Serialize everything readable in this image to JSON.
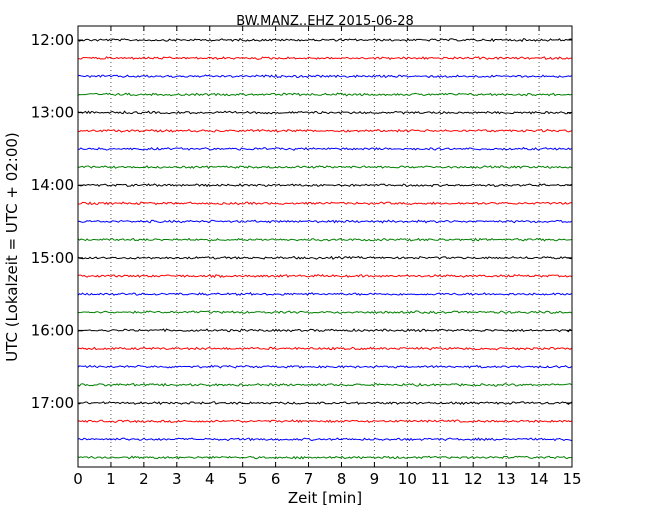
{
  "chart_data": {
    "type": "line",
    "title": "BW.MANZ..EHZ 2015-06-28",
    "xlabel": "Zeit  [min]",
    "ylabel": "UTC (Lokalzeit = UTC + 02:00)",
    "xlim": [
      0,
      15
    ],
    "x_ticks": [
      "0",
      "1",
      "2",
      "3",
      "4",
      "5",
      "6",
      "7",
      "8",
      "9",
      "10",
      "11",
      "12",
      "13",
      "14",
      "15"
    ],
    "y_ticks": [
      "12:00",
      "13:00",
      "14:00",
      "15:00",
      "16:00",
      "17:00"
    ],
    "vertical_grid": "dotted",
    "trace_interval_min": 15,
    "trace_colors": [
      "#000000",
      "#ff0000",
      "#0000ff",
      "#008000"
    ],
    "traces": [
      {
        "start": "12:00",
        "color": "#000000"
      },
      {
        "start": "12:15",
        "color": "#ff0000"
      },
      {
        "start": "12:30",
        "color": "#0000ff"
      },
      {
        "start": "12:45",
        "color": "#008000"
      },
      {
        "start": "13:00",
        "color": "#000000"
      },
      {
        "start": "13:15",
        "color": "#ff0000"
      },
      {
        "start": "13:30",
        "color": "#0000ff"
      },
      {
        "start": "13:45",
        "color": "#008000"
      },
      {
        "start": "14:00",
        "color": "#000000"
      },
      {
        "start": "14:15",
        "color": "#ff0000"
      },
      {
        "start": "14:30",
        "color": "#0000ff"
      },
      {
        "start": "14:45",
        "color": "#008000"
      },
      {
        "start": "15:00",
        "color": "#000000"
      },
      {
        "start": "15:15",
        "color": "#ff0000"
      },
      {
        "start": "15:30",
        "color": "#0000ff"
      },
      {
        "start": "15:45",
        "color": "#008000"
      },
      {
        "start": "16:00",
        "color": "#000000"
      },
      {
        "start": "16:15",
        "color": "#ff0000"
      },
      {
        "start": "16:30",
        "color": "#0000ff"
      },
      {
        "start": "16:45",
        "color": "#008000"
      },
      {
        "start": "17:00",
        "color": "#000000"
      },
      {
        "start": "17:15",
        "color": "#ff0000"
      },
      {
        "start": "17:30",
        "color": "#0000ff"
      },
      {
        "start": "17:45",
        "color": "#008000"
      }
    ]
  }
}
